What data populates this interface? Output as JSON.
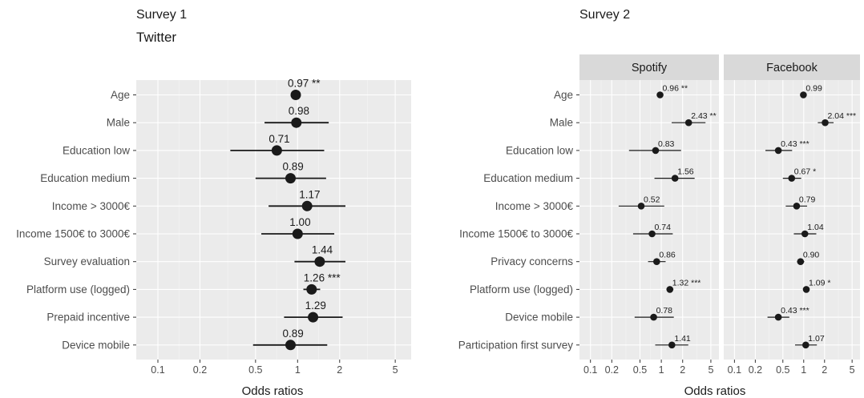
{
  "headings": {
    "survey1": "Survey 1",
    "survey1_platform": "Twitter",
    "survey2": "Survey 2"
  },
  "colors": {
    "panel_background": "#ebebeb",
    "grid_major": "#ffffff",
    "strip_background": "#d9d9d9",
    "point_and_whisker": "#1a1a1a"
  },
  "chart_data": [
    {
      "type": "scatter",
      "subtype": "coefficient plot (odds ratios with confidence intervals)",
      "title": "Twitter",
      "xlabel": "Odds ratios",
      "ylabel": "",
      "x_scale": "log",
      "xlim": [
        0.07,
        6.5
      ],
      "x_ticks": [
        0.1,
        0.2,
        0.5,
        1,
        2,
        5
      ],
      "x_tick_labels": [
        "0.1",
        "0.2",
        "0.5",
        "1",
        "2",
        "5"
      ],
      "grid": true,
      "legend": "none",
      "categories": [
        "Age",
        "Male",
        "Education low",
        "Education medium",
        "Income > 3000€",
        "Income 1500€ to 3000€",
        "Survey evaluation",
        "Platform use (logged)",
        "Prepaid incentive",
        "Device mobile"
      ],
      "series": [
        {
          "values": [
            0.97,
            0.98,
            0.71,
            0.89,
            1.17,
            1.0,
            1.44,
            1.26,
            1.29,
            0.89
          ],
          "ci_low": [
            0.94,
            0.58,
            0.33,
            0.5,
            0.62,
            0.55,
            0.95,
            1.1,
            0.8,
            0.48
          ],
          "ci_high": [
            1.01,
            1.67,
            1.55,
            1.6,
            2.2,
            1.83,
            2.2,
            1.45,
            2.1,
            1.63
          ],
          "labels": [
            "0.97 **",
            "0.98",
            "0.71",
            "0.89",
            "1.17",
            "1.00",
            "1.44",
            "1.26 ***",
            "1.29",
            "0.89"
          ]
        }
      ]
    },
    {
      "type": "scatter",
      "subtype": "faceted coefficient plot (odds ratios with confidence intervals)",
      "xlabel": "Odds ratios",
      "ylabel": "",
      "x_scale": "log",
      "xlim": [
        0.07,
        6.5
      ],
      "x_ticks": [
        0.1,
        0.2,
        0.5,
        1,
        2,
        5
      ],
      "x_tick_labels": [
        "0.1",
        "0.2",
        "0.5",
        "1",
        "2",
        "5"
      ],
      "grid": true,
      "legend": "none",
      "categories": [
        "Age",
        "Male",
        "Education low",
        "Education medium",
        "Income > 3000€",
        "Income 1500€ to 3000€",
        "Privacy concerns",
        "Platform use (logged)",
        "Device mobile",
        "Participation first survey"
      ],
      "facets": [
        {
          "name": "Spotify",
          "values": [
            0.96,
            2.43,
            0.83,
            1.56,
            0.52,
            0.74,
            0.86,
            1.32,
            0.78,
            1.41
          ],
          "ci_low": [
            0.93,
            1.4,
            0.35,
            0.8,
            0.25,
            0.4,
            0.65,
            1.18,
            0.42,
            0.82
          ],
          "ci_high": [
            0.99,
            4.2,
            1.9,
            2.95,
            1.1,
            1.45,
            1.15,
            1.48,
            1.5,
            2.4
          ],
          "labels": [
            "0.96 **",
            "2.43 **",
            "0.83",
            "1.56",
            "0.52",
            "0.74",
            "0.86",
            "1.32 ***",
            "0.78",
            "1.41"
          ]
        },
        {
          "name": "Facebook",
          "values": [
            0.99,
            2.04,
            0.43,
            0.67,
            0.79,
            1.04,
            0.9,
            1.09,
            0.43,
            1.07
          ],
          "ci_low": [
            0.97,
            1.6,
            0.28,
            0.5,
            0.55,
            0.72,
            0.8,
            1.0,
            0.3,
            0.75
          ],
          "ci_high": [
            1.01,
            2.7,
            0.68,
            0.92,
            1.12,
            1.52,
            1.02,
            1.2,
            0.62,
            1.55
          ],
          "labels": [
            "0.99",
            "2.04 ***",
            "0.43 ***",
            "0.67 *",
            "0.79",
            "1.04",
            "0.90",
            "1.09 *",
            "0.43 ***",
            "1.07"
          ]
        }
      ]
    }
  ]
}
